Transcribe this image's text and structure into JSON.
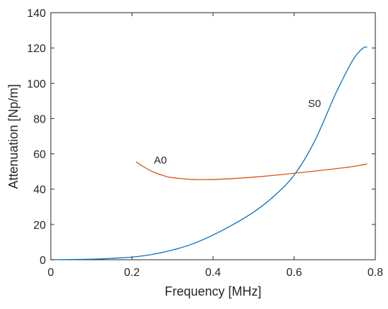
{
  "chart_data": {
    "type": "line",
    "title": "",
    "xlabel": "Frequency [MHz]",
    "ylabel": "Attenuation [Np/m]",
    "xlim": [
      0,
      0.8
    ],
    "ylim": [
      0,
      140
    ],
    "x_ticks": [
      0,
      0.2,
      0.4,
      0.6,
      0.8
    ],
    "x_tick_labels": [
      "0",
      "0.2",
      "0.4",
      "0.6",
      "0.8"
    ],
    "y_ticks": [
      0,
      20,
      40,
      60,
      80,
      100,
      120,
      140
    ],
    "y_tick_labels": [
      "0",
      "20",
      "40",
      "60",
      "80",
      "100",
      "120",
      "140"
    ],
    "grid": false,
    "legend": "none",
    "series": [
      {
        "name": "S0",
        "color": "#0072BD",
        "x": [
          0,
          0.1,
          0.15,
          0.2,
          0.25,
          0.3,
          0.35,
          0.4,
          0.45,
          0.5,
          0.55,
          0.6,
          0.65,
          0.7,
          0.73,
          0.75,
          0.77,
          0.78
        ],
        "y": [
          0,
          0.3,
          0.8,
          1.5,
          3.0,
          5.5,
          9.0,
          14.0,
          20.0,
          27.0,
          36.0,
          48.0,
          67.0,
          93.0,
          107.0,
          115.0,
          120.0,
          120.5
        ]
      },
      {
        "name": "A0",
        "color": "#D95319",
        "x": [
          0.21,
          0.23,
          0.25,
          0.28,
          0.3,
          0.35,
          0.4,
          0.45,
          0.5,
          0.55,
          0.6,
          0.65,
          0.7,
          0.75,
          0.78
        ],
        "y": [
          55.5,
          52.5,
          50.0,
          47.5,
          46.5,
          45.5,
          45.5,
          46.0,
          46.8,
          47.8,
          49.0,
          50.2,
          51.5,
          53.0,
          54.3
        ]
      }
    ],
    "annotations": [
      {
        "text": "A0",
        "x": 0.27,
        "y": 54.5
      },
      {
        "text": "S0",
        "x": 0.65,
        "y": 86.5
      }
    ]
  }
}
